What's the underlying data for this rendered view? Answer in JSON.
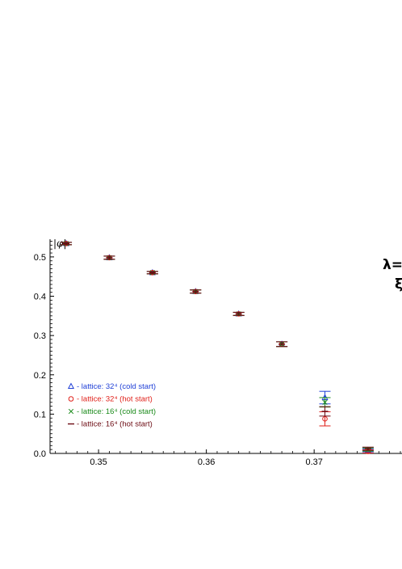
{
  "chart_data": {
    "type": "scatter",
    "ylabel": "|φ|",
    "xlabel": "",
    "xlim": [
      0.3455,
      0.3783
    ],
    "ylim": [
      0.0,
      0.545
    ],
    "x_ticks": [
      "0.35",
      "0.36",
      "0.37"
    ],
    "x_tick_values": [
      0.35,
      0.36,
      0.37
    ],
    "y_ticks": [
      "0.0",
      "0.1",
      "0.2",
      "0.3",
      "0.4",
      "0.5"
    ],
    "y_tick_values": [
      0.0,
      0.1,
      0.2,
      0.3,
      0.4,
      0.5
    ],
    "annotations": [
      "λ=",
      "ξ"
    ],
    "legend_position": "lower-left",
    "series": [
      {
        "name": "- lattice: 32⁴ (cold start)",
        "marker": "triangle",
        "color": "#1f3fd6",
        "points": [
          {
            "x": 0.347,
            "y": 0.534,
            "err": 0.003
          },
          {
            "x": 0.351,
            "y": 0.498,
            "err": 0.004
          },
          {
            "x": 0.355,
            "y": 0.46,
            "err": 0.003
          },
          {
            "x": 0.359,
            "y": 0.412,
            "err": 0.004
          },
          {
            "x": 0.363,
            "y": 0.355,
            "err": 0.004
          },
          {
            "x": 0.367,
            "y": 0.278,
            "err": 0.006
          },
          {
            "x": 0.371,
            "y": 0.142,
            "err": 0.016
          },
          {
            "x": 0.375,
            "y": 0.008,
            "err": 0.004
          }
        ]
      },
      {
        "name": "- lattice: 32⁴ (hot start)",
        "marker": "circle",
        "color": "#e0201a",
        "points": [
          {
            "x": 0.347,
            "y": 0.534,
            "err": 0.003
          },
          {
            "x": 0.351,
            "y": 0.498,
            "err": 0.004
          },
          {
            "x": 0.355,
            "y": 0.46,
            "err": 0.003
          },
          {
            "x": 0.359,
            "y": 0.412,
            "err": 0.004
          },
          {
            "x": 0.363,
            "y": 0.355,
            "err": 0.004
          },
          {
            "x": 0.367,
            "y": 0.278,
            "err": 0.006
          },
          {
            "x": 0.371,
            "y": 0.088,
            "err": 0.018
          },
          {
            "x": 0.375,
            "y": 0.005,
            "err": 0.004
          }
        ]
      },
      {
        "name": "- lattice: 16⁴ (cold start)",
        "marker": "cross",
        "color": "#1a8a1a",
        "points": [
          {
            "x": 0.347,
            "y": 0.534,
            "err": 0.003
          },
          {
            "x": 0.351,
            "y": 0.498,
            "err": 0.004
          },
          {
            "x": 0.355,
            "y": 0.46,
            "err": 0.003
          },
          {
            "x": 0.359,
            "y": 0.412,
            "err": 0.004
          },
          {
            "x": 0.363,
            "y": 0.355,
            "err": 0.004
          },
          {
            "x": 0.367,
            "y": 0.278,
            "err": 0.006
          },
          {
            "x": 0.371,
            "y": 0.13,
            "err": 0.012
          },
          {
            "x": 0.375,
            "y": 0.01,
            "err": 0.004
          }
        ]
      },
      {
        "name": "- lattice: 16⁴ (hot start)",
        "marker": "dash",
        "color": "#6b0a12",
        "points": [
          {
            "x": 0.347,
            "y": 0.534,
            "err": 0.003
          },
          {
            "x": 0.351,
            "y": 0.498,
            "err": 0.004
          },
          {
            "x": 0.355,
            "y": 0.46,
            "err": 0.003
          },
          {
            "x": 0.359,
            "y": 0.412,
            "err": 0.004
          },
          {
            "x": 0.363,
            "y": 0.355,
            "err": 0.004
          },
          {
            "x": 0.367,
            "y": 0.278,
            "err": 0.006
          },
          {
            "x": 0.371,
            "y": 0.107,
            "err": 0.012
          },
          {
            "x": 0.375,
            "y": 0.012,
            "err": 0.004
          }
        ]
      }
    ]
  }
}
